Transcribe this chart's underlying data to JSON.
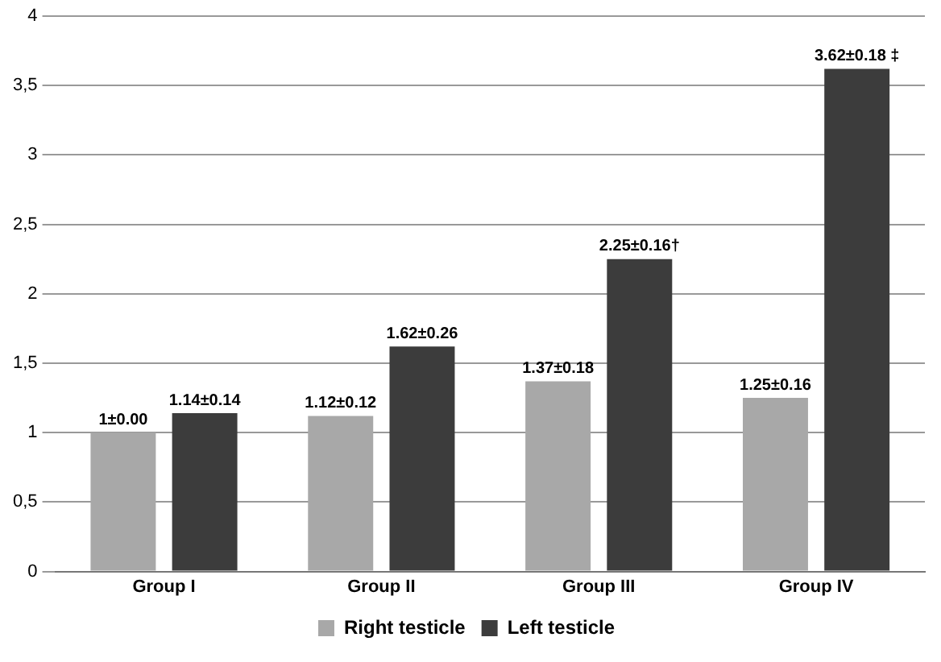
{
  "chart_data": {
    "type": "bar",
    "categories": [
      "Group I",
      "Group II",
      "Group III",
      "Group IV"
    ],
    "series": [
      {
        "name": "Right testicle",
        "color": "#a8a8a8",
        "values": [
          1,
          1.12,
          1.37,
          1.25
        ],
        "value_labels": [
          "1±0.00",
          "1.12±0.12",
          "1.37±0.18",
          "1.25±0.16"
        ]
      },
      {
        "name": "Left testicle",
        "color": "#3c3c3c",
        "values": [
          1.14,
          1.62,
          2.25,
          3.62
        ],
        "value_labels": [
          "1.14±0.14",
          "1.62±0.26",
          "2.25±0.16†",
          "3.62±0.18 ‡"
        ]
      }
    ],
    "ylim": [
      0,
      4
    ],
    "yticks": [
      0,
      {
        "value": 0.5,
        "label": "0,5"
      },
      1,
      {
        "value": 1.5,
        "label": "1,5"
      },
      2,
      {
        "value": 2.5,
        "label": "2,5"
      },
      3,
      {
        "value": 3.5,
        "label": "3,5"
      },
      4
    ],
    "grid": "y",
    "legend": "bottom"
  }
}
